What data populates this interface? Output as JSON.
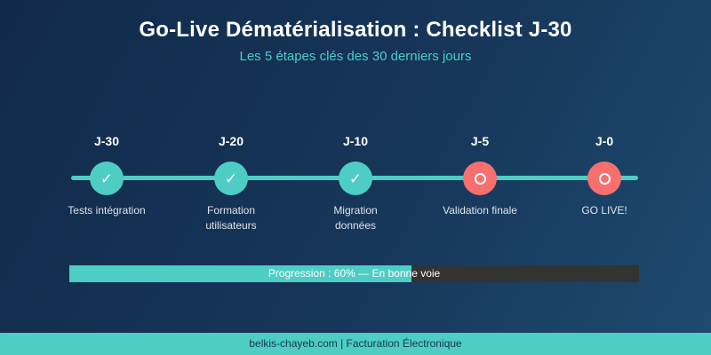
{
  "colors": {
    "bg-dark": "#112a4a",
    "bg-light": "#1e4b70",
    "teal": "#4ecdc4",
    "coral": "#f7706e",
    "track": "#333333"
  },
  "header": {
    "title": "Go-Live Dématérialisation : Checklist J-30",
    "subtitle": "Les 5 étapes clés des 30 derniers jours"
  },
  "icons": {
    "check": "✓"
  },
  "timeline": {
    "steps": [
      {
        "day": "J-30",
        "label": "Tests intégration",
        "status": "done"
      },
      {
        "day": "J-20",
        "label": "Formation utilisateurs",
        "status": "done"
      },
      {
        "day": "J-10",
        "label": "Migration données",
        "status": "done"
      },
      {
        "day": "J-5",
        "label": "Validation finale",
        "status": "pending"
      },
      {
        "day": "J-0",
        "label": "GO LIVE!",
        "status": "pending"
      }
    ]
  },
  "progress": {
    "percent": 60,
    "label": "Progression : 60% — En bonne voie"
  },
  "footer": {
    "text": "belkis-chayeb.com | Facturation Électronique"
  }
}
